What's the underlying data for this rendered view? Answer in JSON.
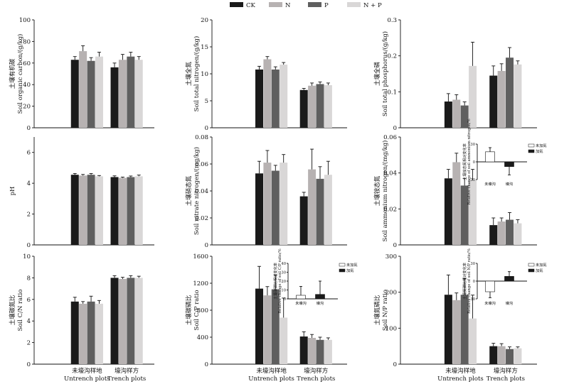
{
  "legend": [
    {
      "label": "CK",
      "color": "#1a1a1a"
    },
    {
      "label": "N",
      "color": "#b7b2b2"
    },
    {
      "label": "P",
      "color": "#5f5f5f"
    },
    {
      "label": "N + P",
      "color": "#d9d7d7"
    }
  ],
  "groups": [
    {
      "cn": "未壕沟样地",
      "en": "Untrench plots"
    },
    {
      "cn": "壕沟样方",
      "en": "Trench plots"
    }
  ],
  "chart_data": [
    {
      "id": "soc",
      "type": "bar",
      "ylabel_cn": "土壤有机碳",
      "ylabel_en": "Soil organic carbon/(g/kg)",
      "ylim": [
        0,
        100
      ],
      "yticks": [
        0,
        20,
        40,
        60,
        80,
        100
      ],
      "values": [
        [
          63,
          71,
          62,
          66
        ],
        [
          56,
          63,
          66,
          63
        ]
      ],
      "errors": [
        [
          3,
          5,
          3,
          4
        ],
        [
          4,
          5,
          4,
          3
        ]
      ]
    },
    {
      "id": "tn",
      "type": "bar",
      "ylabel_cn": "土壤全氮",
      "ylabel_en": "Soil total nitrogen/(g/kg)",
      "ylim": [
        0,
        20
      ],
      "yticks": [
        0,
        5,
        10,
        15,
        20
      ],
      "values": [
        [
          10.8,
          12.7,
          10.8,
          11.7
        ],
        [
          7.0,
          7.8,
          8.1,
          7.9
        ]
      ],
      "errors": [
        [
          0.6,
          0.5,
          0.5,
          0.4
        ],
        [
          0.3,
          0.5,
          0.4,
          0.4
        ]
      ]
    },
    {
      "id": "tp",
      "type": "bar",
      "ylabel_cn": "土壤全磷",
      "ylabel_en": "Soil total phosphorus/(g/kg)",
      "ylim": [
        0,
        0.3
      ],
      "yticks": [
        "0",
        "0.1",
        "0.2",
        "0.3"
      ],
      "values": [
        [
          0.073,
          0.078,
          0.062,
          0.172
        ],
        [
          0.145,
          0.158,
          0.195,
          0.176
        ]
      ],
      "errors": [
        [
          0.022,
          0.014,
          0.01,
          0.066
        ],
        [
          0.027,
          0.02,
          0.028,
          0.01
        ]
      ]
    },
    {
      "id": "ph",
      "type": "bar",
      "ylabel_cn": "",
      "ylabel_en": "pH",
      "ylim": [
        0,
        7
      ],
      "yticks": [
        0,
        2,
        4,
        6
      ],
      "values": [
        [
          4.55,
          4.5,
          4.55,
          4.45
        ],
        [
          4.4,
          4.35,
          4.4,
          4.45
        ]
      ],
      "errors": [
        [
          0.08,
          0.07,
          0.08,
          0.05
        ],
        [
          0.08,
          0.05,
          0.07,
          0.08
        ]
      ]
    },
    {
      "id": "no3",
      "type": "bar",
      "ylabel_cn": "土壤硝态氮",
      "ylabel_en": "Soil nitrate nitrogen/(mg/kg)",
      "ylim": [
        0,
        0.08
      ],
      "yticks": [
        "0",
        "0.02",
        "0.04",
        "0.06",
        "0.08"
      ],
      "values": [
        [
          0.053,
          0.061,
          0.055,
          0.061
        ],
        [
          0.036,
          0.056,
          0.049,
          0.052
        ]
      ],
      "errors": [
        [
          0.009,
          0.009,
          0.004,
          0.006
        ],
        [
          0.003,
          0.015,
          0.009,
          0.01
        ]
      ]
    },
    {
      "id": "nh4",
      "type": "bar",
      "ylabel_cn": "土壤铵态氮",
      "ylabel_en": "Soil ammonium nitrogen/(mg/kg)",
      "ylim": [
        0,
        0.06
      ],
      "yticks": [
        "0",
        "0.02",
        "0.04",
        "0.06"
      ],
      "values": [
        [
          0.037,
          0.046,
          0.033,
          0.036
        ],
        [
          0.011,
          0.013,
          0.014,
          0.012
        ]
      ],
      "errors": [
        [
          0.005,
          0.005,
          0.004,
          0.006
        ],
        [
          0.004,
          0.002,
          0.004,
          0.002
        ]
      ],
      "inset": {
        "ylabel_cn": "土壤铵态氮相对变化率",
        "ylabel_en": "Relative change of soil ammonium nitrogen/%",
        "ylim": [
          -30,
          30
        ],
        "yticks": [
          -30,
          0,
          30
        ],
        "categories": [
          "未壕沟",
          "壕沟"
        ],
        "legend": [
          "未加氮",
          "加氮"
        ],
        "values": [
          17,
          -8
        ],
        "errors": [
          7,
          14
        ]
      }
    },
    {
      "id": "cn",
      "type": "bar",
      "ylabel_cn": "土壤碳氮比",
      "ylabel_en": "Soil C/N ratio",
      "ylim": [
        0,
        10
      ],
      "yticks": [
        0,
        2,
        4,
        6,
        8,
        10
      ],
      "values": [
        [
          5.8,
          5.6,
          5.8,
          5.6
        ],
        [
          8.0,
          7.9,
          8.0,
          8.0
        ]
      ],
      "errors": [
        [
          0.4,
          0.2,
          0.5,
          0.3
        ],
        [
          0.2,
          0.15,
          0.2,
          0.15
        ]
      ]
    },
    {
      "id": "cp",
      "type": "bar",
      "ylabel_cn": "土壤碳磷比",
      "ylabel_en": "Soil C/P ratio",
      "ylim": [
        0,
        1600
      ],
      "yticks": [
        0,
        400,
        800,
        1200,
        1600
      ],
      "values": [
        [
          1120,
          1020,
          1110,
          690
        ],
        [
          410,
          390,
          360,
          360
        ]
      ],
      "errors": [
        [
          330,
          130,
          210,
          290
        ],
        [
          70,
          50,
          40,
          30
        ]
      ],
      "inset": {
        "ylabel_cn": "土壤碳磷比相对变化率",
        "ylabel_en": "Relative change of soil C/P ratio/%",
        "ylim": [
          0,
          40
        ],
        "yticks": [
          0,
          10,
          20,
          30,
          40
        ],
        "categories": [
          "未壕沟",
          "壕沟"
        ],
        "legend": [
          "未加氮",
          "加氮"
        ],
        "values": [
          4,
          5
        ],
        "errors": [
          10,
          15
        ]
      }
    },
    {
      "id": "np",
      "type": "bar",
      "ylabel_cn": "土壤氮磷比",
      "ylabel_en": "Soil N/P ratio",
      "ylim": [
        0,
        300
      ],
      "yticks": [
        0,
        100,
        200,
        300
      ],
      "values": [
        [
          193,
          178,
          193,
          127
        ],
        [
          50,
          50,
          42,
          44
        ]
      ],
      "errors": [
        [
          55,
          20,
          45,
          65
        ],
        [
          8,
          7,
          6,
          4
        ]
      ],
      "inset": {
        "ylabel_cn": "土壤氮磷比相对变化率",
        "ylabel_en": "Relative change of soil N/P ratio/%",
        "ylim": [
          -30,
          30
        ],
        "yticks": [
          -30,
          0,
          30
        ],
        "categories": [
          "未壕沟",
          "壕沟"
        ],
        "legend": [
          "未加氮",
          "加氮"
        ],
        "values": [
          -18,
          8
        ],
        "errors": [
          10,
          8
        ]
      }
    }
  ]
}
